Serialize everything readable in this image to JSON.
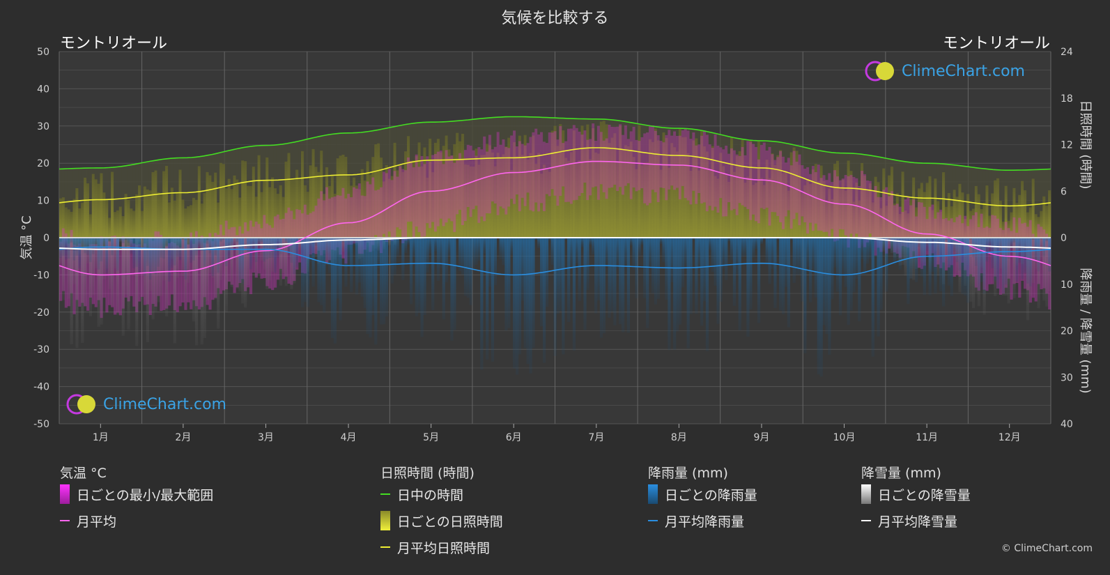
{
  "title": "気候を比較する",
  "location_left": "モントリオール",
  "location_right": "モントリオール",
  "logo_text": "ClimeChart.com",
  "copyright": "© ClimeChart.com",
  "left_axis_label": "気温 °C",
  "right_axis_label_top": "日照時間 (時間)",
  "right_axis_label_bottom": "降雨量 / 降雪量 (mm)",
  "legend": {
    "temperature": {
      "header": "気温 °C",
      "range": "日ごとの最小/最大範囲",
      "avg": "月平均"
    },
    "sunshine": {
      "header": "日照時間 (時間)",
      "daylight": "日中の時間",
      "daily": "日ごとの日照時間",
      "avg": "月平均日照時間"
    },
    "rain": {
      "header": "降雨量 (mm)",
      "daily": "日ごとの降雨量",
      "avg": "月平均降雨量"
    },
    "snow": {
      "header": "降雪量 (mm)",
      "daily": "日ごとの降雪量",
      "avg": "月平均降雪量"
    }
  },
  "colors": {
    "daylight": "#44dd22",
    "sunshine_avg": "#eeee33",
    "sunshine_fill": "#9a9a30",
    "temp_range": "#dd33cc",
    "temp_avg": "#ff66ee",
    "rain": "#1e7bc4",
    "rain_avg": "#2a8ee0",
    "snow": "#bbbbbb",
    "snow_avg": "#ffffff"
  },
  "chart_data": {
    "type": "line",
    "months": [
      "1月",
      "2月",
      "3月",
      "4月",
      "5月",
      "6月",
      "7月",
      "8月",
      "9月",
      "10月",
      "11月",
      "12月"
    ],
    "y_left": {
      "label": "気温 °C",
      "ticks": [
        50,
        40,
        30,
        20,
        10,
        0,
        -10,
        -20,
        -30,
        -40,
        -50
      ],
      "range": [
        -50,
        50
      ]
    },
    "y_right_top": {
      "label": "日照時間 (時間)",
      "ticks": [
        24,
        18,
        12,
        6,
        0
      ],
      "range": [
        0,
        24
      ]
    },
    "y_right_bottom": {
      "label": "降雨量 / 降雪量 (mm)",
      "ticks": [
        0,
        10,
        20,
        30,
        40
      ],
      "range": [
        0,
        40
      ]
    },
    "series": [
      {
        "name": "日中の時間",
        "unit": "hours",
        "values": [
          9.0,
          10.3,
          11.9,
          13.5,
          14.9,
          15.6,
          15.3,
          14.1,
          12.5,
          10.9,
          9.6,
          8.7
        ]
      },
      {
        "name": "月平均日照時間",
        "unit": "hours",
        "values": [
          4.9,
          5.8,
          7.4,
          8.1,
          10.0,
          10.3,
          11.6,
          10.6,
          9.0,
          6.4,
          5.1,
          4.1
        ]
      },
      {
        "name": "月平均",
        "unit": "°C",
        "values": [
          -10.0,
          -9.0,
          -3.5,
          4.0,
          12.5,
          17.5,
          20.5,
          19.5,
          15.5,
          9.0,
          1.0,
          -5.0
        ]
      },
      {
        "name": "月平均降雨量",
        "unit": "mm",
        "values": [
          2.0,
          2.5,
          2.5,
          6.0,
          5.5,
          8.0,
          6.0,
          6.5,
          5.5,
          8.0,
          4.0,
          3.0
        ]
      },
      {
        "name": "月平均降雪量",
        "unit": "mm",
        "values": [
          2.5,
          2.5,
          1.5,
          0.5,
          0.0,
          0.0,
          0.0,
          0.0,
          0.0,
          0.0,
          1.0,
          2.0
        ]
      },
      {
        "name": "日ごとの最小/最大範囲",
        "unit": "°C",
        "min": [
          -16,
          -15,
          -9,
          -1,
          6,
          12,
          15,
          14,
          9,
          3,
          -3,
          -11
        ],
        "max": [
          -4,
          -3,
          2,
          10,
          19,
          24,
          26,
          25,
          21,
          14,
          5,
          1
        ]
      }
    ]
  }
}
